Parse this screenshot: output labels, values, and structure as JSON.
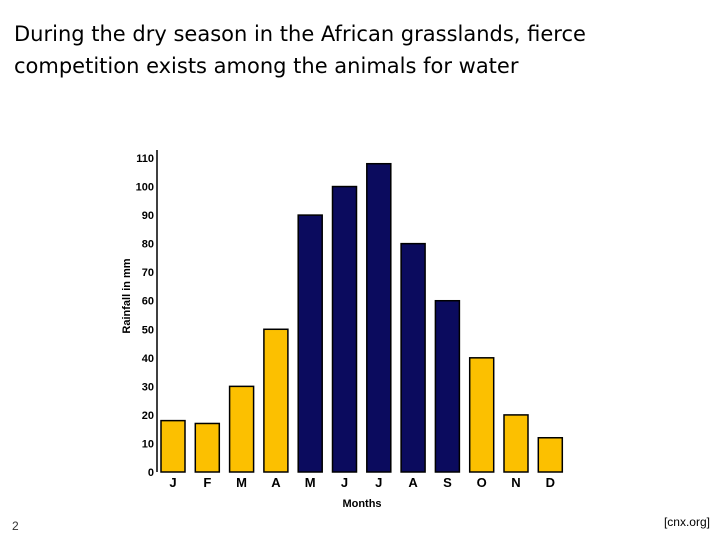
{
  "slide": {
    "title_line1": "During the dry season in the African grasslands, fierce",
    "title_line2": "competition exists among the animals for water",
    "page_number": "2",
    "source": "[cnx.org]"
  },
  "colors": {
    "wet": "#0b0b5e",
    "dry": "#fcc000",
    "stroke": "#000000"
  },
  "chart_data": {
    "type": "bar",
    "title": "",
    "xlabel": "Months",
    "ylabel": "Rainfall in mm",
    "categories": [
      "J",
      "F",
      "M",
      "A",
      "M",
      "J",
      "J",
      "A",
      "S",
      "O",
      "N",
      "D"
    ],
    "values": [
      18,
      17,
      30,
      50,
      90,
      100,
      108,
      80,
      60,
      40,
      20,
      12
    ],
    "bar_colors": [
      "dry",
      "dry",
      "dry",
      "dry",
      "wet",
      "wet",
      "wet",
      "wet",
      "wet",
      "dry",
      "dry",
      "dry"
    ],
    "ylim": [
      0,
      110
    ],
    "yticks": [
      0,
      10,
      20,
      30,
      40,
      50,
      60,
      70,
      80,
      90,
      100,
      110
    ],
    "grid": false,
    "legend": "none"
  }
}
